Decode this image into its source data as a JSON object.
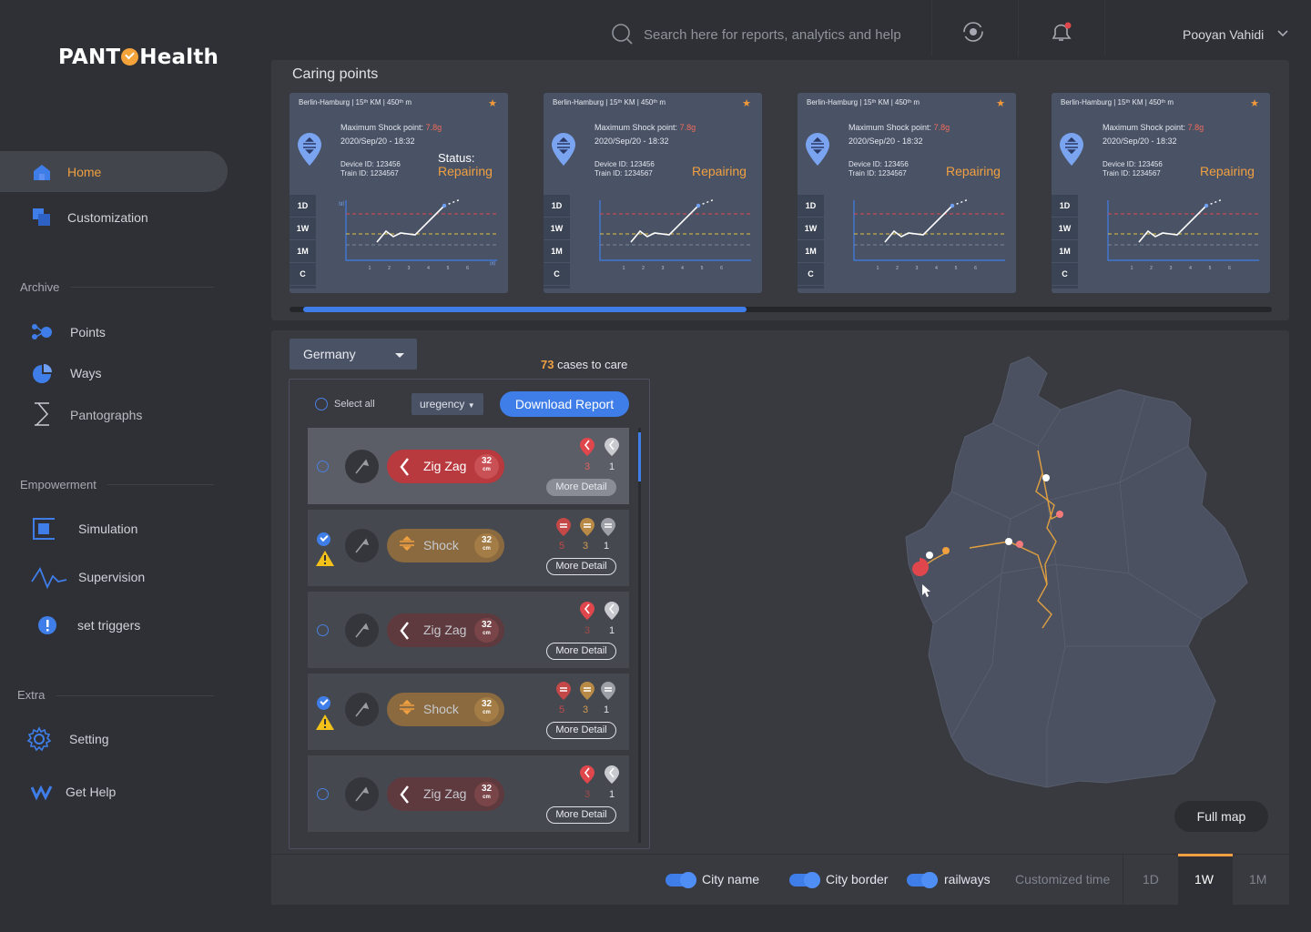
{
  "brand": {
    "logo_left": "PANT",
    "logo_right": "Health"
  },
  "header": {
    "search_placeholder": "Search here for reports, analytics and help",
    "user_name": "Pooyan Vahidi"
  },
  "sidebar": {
    "home": "Home",
    "customization": "Customization",
    "archive": "Archive",
    "points": "Points",
    "ways": "Ways",
    "pantographs": "Pantographs",
    "empowerment": "Empowerment",
    "simulation": "Simulation",
    "supervision": "Supervision",
    "set_triggers": "set triggers",
    "extra": "Extra",
    "setting": "Setting",
    "get_help": "Get Help"
  },
  "caring": {
    "title": "Caring points",
    "cards": [
      {
        "header": "Berlin-Hamburg | 15ᵗʰ KM | 450ᵗʰ m",
        "shock_label": "Maximum Shock point:",
        "shock_value": "7.8g",
        "datetime": "2020/Sep/20 - 18:32",
        "device": "Device ID: 123456",
        "train": "Train ID: 1234567",
        "status_label": "Status:",
        "status_value": "Repairing"
      },
      {
        "header": "Berlin-Hamburg | 15ᵗʰ KM | 450ᵗʰ m",
        "shock_label": "Maximum Shock point:",
        "shock_value": "7.8g",
        "datetime": "2020/Sep/20 - 18:32",
        "device": "Device ID: 123456",
        "train": "Train ID: 1234567",
        "status_label": "",
        "status_value": "Repairing"
      },
      {
        "header": "Berlin-Hamburg | 15ᵗʰ KM | 450ᵗʰ m",
        "shock_label": "Maximum Shock point:",
        "shock_value": "7.8g",
        "datetime": "2020/Sep/20 - 18:32",
        "device": "Device ID: 123456",
        "train": "Train ID: 1234567",
        "status_label": "",
        "status_value": "Repairing"
      },
      {
        "header": "Berlin-Hamburg | 15ᵗʰ KM | 450ᵗʰ m",
        "shock_label": "Maximum Shock point:",
        "shock_value": "7.8g",
        "datetime": "2020/Sep/20 - 18:32",
        "device": "Device ID: 123456",
        "train": "Train ID: 1234567",
        "status_label": "",
        "status_value": "Repairing"
      }
    ],
    "range_tabs": [
      "1D",
      "1W",
      "1M",
      "C"
    ],
    "x_ticks": [
      "1",
      "2",
      "3",
      "4",
      "5",
      "6"
    ],
    "y_unit": "(g)",
    "x_unit": "(d)"
  },
  "filters": {
    "country": "Germany",
    "cases_count": "73",
    "cases_label": "cases to care",
    "select_all": "Select all",
    "sort": "uregency",
    "download": "Download Report"
  },
  "cases": [
    {
      "type": "Zig Zag",
      "size": "32",
      "unit": "cm",
      "count_a": "3",
      "count_b": "1",
      "more": "More Detail",
      "selected": false,
      "highlight": true
    },
    {
      "type": "Shock",
      "size": "32",
      "unit": "cm",
      "count_a": "5",
      "count_b": "3",
      "count_c": "1",
      "more": "More Detail",
      "selected": true
    },
    {
      "type": "Zig Zag",
      "size": "32",
      "unit": "cm",
      "count_a": "3",
      "count_b": "1",
      "more": "More Detail",
      "selected": false
    },
    {
      "type": "Shock",
      "size": "32",
      "unit": "cm",
      "count_a": "5",
      "count_b": "3",
      "count_c": "1",
      "more": "More Detail",
      "selected": true
    },
    {
      "type": "Zig Zag",
      "size": "32",
      "unit": "cm",
      "count_a": "3",
      "count_b": "1",
      "more": "More Detail",
      "selected": false
    }
  ],
  "map": {
    "full_map": "Full map"
  },
  "map_controls": {
    "city_name": "City name",
    "city_border": "City border",
    "railways": "railways",
    "customized_time": "Customized time",
    "t1d": "1D",
    "t1w": "1W",
    "t1m": "1M",
    "active": "1W"
  },
  "colors": {
    "accent_blue": "#3f7ee8",
    "accent_orange": "#f0a040",
    "alert_red": "#e0474c"
  }
}
